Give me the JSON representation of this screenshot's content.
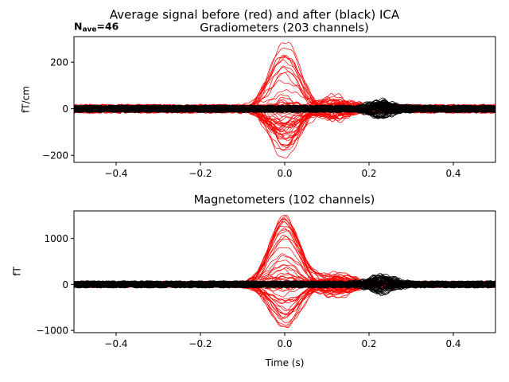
{
  "figure_title": "Average signal before (red) and after (black) ICA",
  "nave": {
    "prefix": "N",
    "subscript": "ave",
    "value": "=46"
  },
  "colors": {
    "before": "#ff0000",
    "after": "#000000",
    "axes": "#000000",
    "background": "#ffffff"
  },
  "chart_data": [
    {
      "type": "line",
      "title": "Gradiometers (203 channels)",
      "xlabel": "",
      "ylabel": "fT/cm",
      "xlim": [
        -0.5,
        0.5
      ],
      "ylim": [
        -230,
        310
      ],
      "xticks": [
        -0.4,
        -0.2,
        0.0,
        0.2,
        0.4
      ],
      "xtick_labels": [
        "−0.4",
        "−0.2",
        "0.0",
        "0.2",
        "0.4"
      ],
      "yticks": [
        -200,
        0,
        200
      ],
      "ytick_labels": [
        "−200",
        "0",
        "200"
      ],
      "series": [
        {
          "key": "before",
          "color": "#ff0000",
          "channel_count": 203,
          "peak_time": 0.0,
          "peak_max": 290,
          "peak_min": -205,
          "baseline_range": [
            -40,
            40
          ]
        },
        {
          "key": "after",
          "color": "#000000",
          "channel_count": 203,
          "peak_time": 0.23,
          "peak_max": 35,
          "peak_min": -35,
          "baseline_range": [
            -25,
            25
          ]
        }
      ],
      "grid": false
    },
    {
      "type": "line",
      "title": "Magnetometers (102 channels)",
      "xlabel": "Time (s)",
      "ylabel": "fT",
      "xlim": [
        -0.5,
        0.5
      ],
      "ylim": [
        -1050,
        1600
      ],
      "xticks": [
        -0.4,
        -0.2,
        0.0,
        0.2,
        0.4
      ],
      "xtick_labels": [
        "−0.4",
        "−0.2",
        "0.0",
        "0.2",
        "0.4"
      ],
      "yticks": [
        -1000,
        0,
        1000
      ],
      "ytick_labels": [
        "−1000",
        "0",
        "1000"
      ],
      "series": [
        {
          "key": "before",
          "color": "#ff0000",
          "channel_count": 102,
          "peak_time": 0.0,
          "peak_max": 1480,
          "peak_min": -950,
          "baseline_range": [
            -150,
            150
          ]
        },
        {
          "key": "after",
          "color": "#000000",
          "channel_count": 102,
          "peak_time": 0.23,
          "peak_max": 180,
          "peak_min": -180,
          "baseline_range": [
            -120,
            120
          ]
        }
      ],
      "grid": false
    }
  ]
}
